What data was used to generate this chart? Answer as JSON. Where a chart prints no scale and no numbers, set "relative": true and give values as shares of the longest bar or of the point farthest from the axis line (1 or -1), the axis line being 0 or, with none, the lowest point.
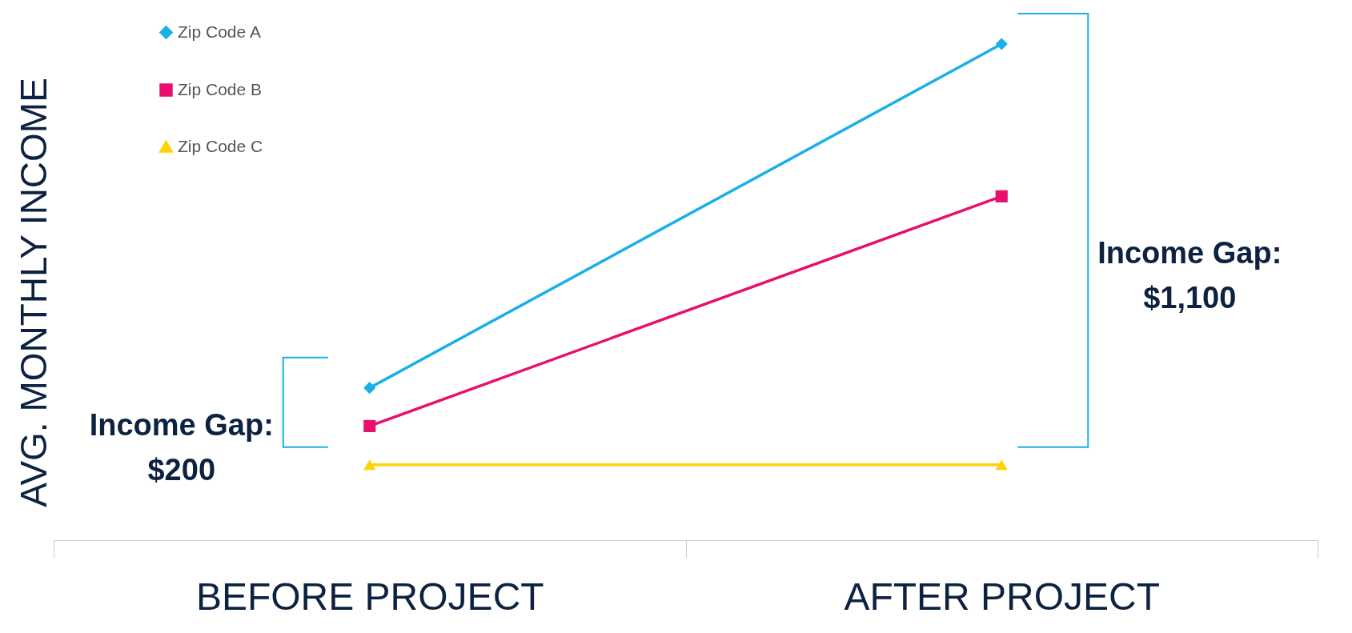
{
  "chart_data": {
    "type": "line",
    "relative": true,
    "ylabel": "AVG. MONTHLY INCOME",
    "categories": [
      "BEFORE PROJECT",
      "AFTER PROJECT"
    ],
    "series": [
      {
        "name": "Zip Code A",
        "color": "#1aafe6",
        "marker": "diamond",
        "values": [
          0.307,
          1
        ]
      },
      {
        "name": "Zip Code B",
        "color": "#e8106c",
        "marker": "square",
        "values": [
          0.23,
          0.693
        ]
      },
      {
        "name": "Zip Code C",
        "color": "#ffd200",
        "marker": "triangle",
        "values": [
          0.152,
          0.152
        ]
      }
    ],
    "annotations": [
      "Income Gap:\n$200",
      "Income Gap:\n$1,100"
    ],
    "legend": "top left",
    "grid": false
  }
}
